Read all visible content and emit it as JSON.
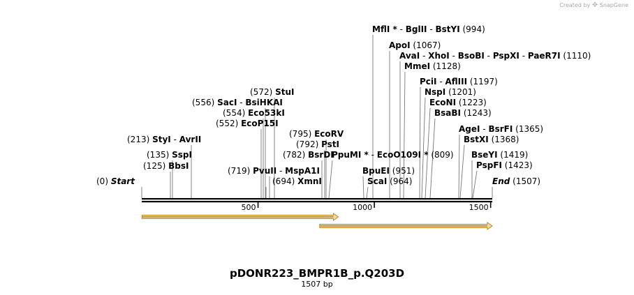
{
  "branding": {
    "created_by": "Created by",
    "app": "SnapGene"
  },
  "title": "pDONR223_BMPR1B_p.Q203D",
  "length_label": "1507 bp",
  "colors": {
    "feature_fill": "#f3d9a4",
    "feature_stroke": "#c58a1b",
    "feature_core": "#7a5a10"
  },
  "sequence": {
    "start_label": "Start",
    "start_pos": "(0)",
    "end_label": "End",
    "end_pos": "(1507)",
    "length": 1507
  },
  "ticks": [
    {
      "value": 500,
      "label": "500"
    },
    {
      "value": 1000,
      "label": "1000"
    },
    {
      "value": 1500,
      "label": "1500"
    }
  ],
  "features": [
    {
      "name": "feature-arrow-1",
      "start": 1,
      "end": 845
    },
    {
      "name": "feature-arrow-2",
      "start": 765,
      "end": 1507
    }
  ],
  "labels": [
    {
      "id": "bbsi",
      "sites": [
        {
          "name": "BbsI"
        }
      ],
      "pos_text": "(125)",
      "pos_side": "left",
      "pos": 125
    },
    {
      "id": "sspi",
      "sites": [
        {
          "name": "SspI"
        }
      ],
      "pos_text": "(135)",
      "pos_side": "left",
      "pos": 135
    },
    {
      "id": "styi",
      "sites": [
        {
          "name": "StyI"
        },
        {
          "name": "AvrII"
        }
      ],
      "pos_text": "(213)",
      "pos_side": "left",
      "pos": 213
    },
    {
      "id": "ecop15i",
      "sites": [
        {
          "name": "EcoP15I"
        }
      ],
      "pos_text": "(552)",
      "pos_side": "left",
      "pos": 552
    },
    {
      "id": "eco53ki",
      "sites": [
        {
          "name": "Eco53kI"
        }
      ],
      "pos_text": "(554)",
      "pos_side": "left",
      "pos": 554
    },
    {
      "id": "saci",
      "sites": [
        {
          "name": "SacI"
        },
        {
          "name": "BsiHKAI"
        }
      ],
      "pos_text": "(556)",
      "pos_side": "left",
      "pos": 556
    },
    {
      "id": "stui",
      "sites": [
        {
          "name": "StuI"
        }
      ],
      "pos_text": "(572)",
      "pos_side": "left",
      "pos": 572
    },
    {
      "id": "pvuii",
      "sites": [
        {
          "name": "PvuII"
        },
        {
          "name": "MspA1I"
        }
      ],
      "pos_text": "(719)",
      "pos_side": "left",
      "pos": 719
    },
    {
      "id": "xmni",
      "sites": [
        {
          "name": "XmnI"
        }
      ],
      "pos_text": "(694)",
      "pos_side": "left",
      "pos": 694
    },
    {
      "id": "bsrdi",
      "sites": [
        {
          "name": "BsrDI"
        }
      ],
      "pos_text": "(782)",
      "pos_side": "left",
      "pos": 782
    },
    {
      "id": "psti",
      "sites": [
        {
          "name": "PstI"
        }
      ],
      "pos_text": "(792)",
      "pos_side": "left",
      "pos": 792
    },
    {
      "id": "ecorv",
      "sites": [
        {
          "name": "EcoRV"
        }
      ],
      "pos_text": "(795)",
      "pos_side": "left",
      "pos": 795
    },
    {
      "id": "ppumi",
      "sites": [
        {
          "name": "PpuMI",
          "star": true
        },
        {
          "name": "EcoO109I",
          "star": true
        }
      ],
      "pos_text": "(809)",
      "pos_side": "right",
      "pos": 809
    },
    {
      "id": "bpuei",
      "sites": [
        {
          "name": "BpuEI"
        }
      ],
      "pos_text": "(951)",
      "pos_side": "right",
      "pos": 951
    },
    {
      "id": "scai",
      "sites": [
        {
          "name": "ScaI"
        }
      ],
      "pos_text": "(964)",
      "pos_side": "right",
      "pos": 964
    },
    {
      "id": "mfli",
      "sites": [
        {
          "name": "MflI",
          "star": true
        },
        {
          "name": "BglII"
        },
        {
          "name": "BstYI"
        }
      ],
      "pos_text": "(994)",
      "pos_side": "right",
      "pos": 994
    },
    {
      "id": "apoi",
      "sites": [
        {
          "name": "ApoI"
        }
      ],
      "pos_text": "(1067)",
      "pos_side": "right",
      "pos": 1067
    },
    {
      "id": "avai",
      "sites": [
        {
          "name": "AvaI"
        },
        {
          "name": "XhoI"
        },
        {
          "name": "BsoBI"
        },
        {
          "name": "PspXI"
        },
        {
          "name": "PaeR7I"
        }
      ],
      "pos_text": "(1110)",
      "pos_side": "right",
      "pos": 1110
    },
    {
      "id": "mmei",
      "sites": [
        {
          "name": "MmeI"
        }
      ],
      "pos_text": "(1128)",
      "pos_side": "right",
      "pos": 1128
    },
    {
      "id": "pcii",
      "sites": [
        {
          "name": "PciI"
        },
        {
          "name": "AflIII"
        }
      ],
      "pos_text": "(1197)",
      "pos_side": "right",
      "pos": 1197
    },
    {
      "id": "nspi",
      "sites": [
        {
          "name": "NspI"
        }
      ],
      "pos_text": "(1201)",
      "pos_side": "right",
      "pos": 1201
    },
    {
      "id": "econi",
      "sites": [
        {
          "name": "EcoNI"
        }
      ],
      "pos_text": "(1223)",
      "pos_side": "right",
      "pos": 1223
    },
    {
      "id": "bsabi",
      "sites": [
        {
          "name": "BsaBI"
        }
      ],
      "pos_text": "(1243)",
      "pos_side": "right",
      "pos": 1243
    },
    {
      "id": "agei",
      "sites": [
        {
          "name": "AgeI"
        },
        {
          "name": "BsrFI"
        }
      ],
      "pos_text": "(1365)",
      "pos_side": "right",
      "pos": 1365
    },
    {
      "id": "bstxi",
      "sites": [
        {
          "name": "BstXI"
        }
      ],
      "pos_text": "(1368)",
      "pos_side": "right",
      "pos": 1368
    },
    {
      "id": "bseyi",
      "sites": [
        {
          "name": "BseYI"
        }
      ],
      "pos_text": "(1419)",
      "pos_side": "right",
      "pos": 1419
    },
    {
      "id": "pspfi",
      "sites": [
        {
          "name": "PspFI"
        }
      ],
      "pos_text": "(1423)",
      "pos_side": "right",
      "pos": 1423
    }
  ]
}
